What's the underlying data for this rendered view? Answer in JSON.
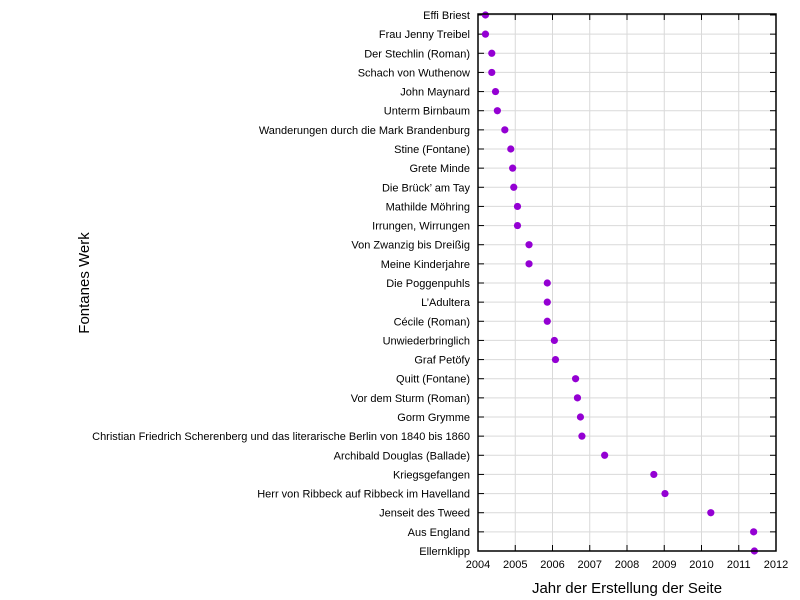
{
  "chart_data": {
    "type": "scatter",
    "xlabel": "Jahr der Erstellung der Seite",
    "ylabel": "Fontanes Werk",
    "xlim": [
      2004,
      2012
    ],
    "xticks": [
      "2004",
      "2005",
      "2006",
      "2007",
      "2008",
      "2009",
      "2010",
      "2011",
      "2012"
    ],
    "grid": true,
    "marker_color": "#9400d3",
    "categories": [
      "Effi Briest",
      "Frau Jenny Treibel",
      "Der Stechlin (Roman)",
      "Schach von Wuthenow",
      "John Maynard",
      "Unterm Birnbaum",
      "Wanderungen durch die Mark Brandenburg",
      "Stine (Fontane)",
      "Grete Minde",
      "Die Brück’ am Tay",
      "Mathilde Möhring",
      "Irrungen, Wirrungen",
      "Von Zwanzig bis Dreißig",
      "Meine Kinderjahre",
      "Die Poggenpuhls",
      "L’Adultera",
      "Cécile (Roman)",
      "Unwiederbringlich",
      "Graf Petöfy",
      "Quitt (Fontane)",
      "Vor dem Sturm (Roman)",
      "Gorm Grymme",
      "Christian Friedrich Scherenberg und das literarische Berlin von 1840 bis 1860",
      "Archibald Douglas (Ballade)",
      "Kriegsgefangen",
      "Herr von Ribbeck auf Ribbeck im Havelland",
      "Jenseit des Tweed",
      "Aus England",
      "Ellernklipp"
    ],
    "values": [
      2004.2,
      2004.2,
      2004.37,
      2004.37,
      2004.47,
      2004.52,
      2004.72,
      2004.88,
      2004.93,
      2004.96,
      2005.06,
      2005.06,
      2005.37,
      2005.37,
      2005.86,
      2005.86,
      2005.86,
      2006.05,
      2006.08,
      2006.62,
      2006.67,
      2006.75,
      2006.79,
      2007.4,
      2008.72,
      2009.02,
      2010.25,
      2011.4,
      2011.42
    ]
  }
}
